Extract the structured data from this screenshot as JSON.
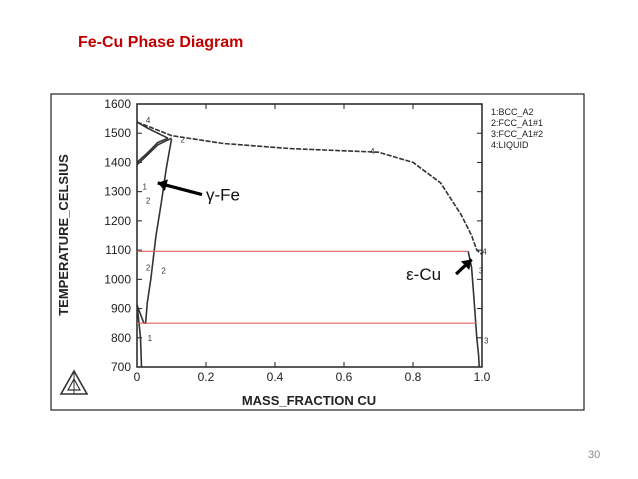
{
  "slide": {
    "title": "Fe-Cu Phase Diagram",
    "page_number": "30"
  },
  "colors": {
    "title": "#c00000",
    "curve": "#333333",
    "isotherm": "#e06060",
    "frame": "#222222"
  },
  "chart_data": {
    "type": "line",
    "title": "",
    "xlabel": "MASS_FRACTION CU",
    "ylabel": "TEMPERATURE_CELSIUS",
    "xlim": [
      0,
      1.0
    ],
    "ylim": [
      700,
      1600
    ],
    "x_ticks": [
      0,
      0.2,
      0.4,
      0.6,
      0.8,
      1.0
    ],
    "x_tick_labels": [
      "0",
      "0.2",
      "0.4",
      "0.6",
      "0.8",
      "1.0"
    ],
    "y_ticks": [
      700,
      800,
      900,
      1000,
      1100,
      1200,
      1300,
      1400,
      1500,
      1600
    ],
    "y_tick_labels": [
      "700",
      "800",
      "900",
      "1000",
      "1100",
      "1200",
      "1300",
      "1400",
      "1500",
      "1600"
    ],
    "grid": false,
    "legend_position": "right",
    "legend": [
      "1:BCC_A2",
      "2:FCC_A1#1",
      "3:FCC_A1#2",
      "4:LIQUID"
    ],
    "series": [
      {
        "values": [
          [
            0.0,
            1538
          ],
          [
            0.04,
            1520
          ],
          [
            0.1,
            1492
          ],
          [
            0.25,
            1465
          ],
          [
            0.45,
            1447
          ],
          [
            0.6,
            1440
          ],
          [
            0.7,
            1435
          ],
          [
            0.8,
            1400
          ],
          [
            0.88,
            1330
          ],
          [
            0.94,
            1220
          ],
          [
            0.97,
            1150
          ],
          [
            0.985,
            1100
          ],
          [
            1.0,
            1085
          ]
        ]
      },
      {
        "values": [
          [
            0.0,
            1538
          ],
          [
            0.03,
            1518
          ],
          [
            0.06,
            1500
          ],
          [
            0.09,
            1483
          ]
        ]
      },
      {
        "values": [
          [
            0.0,
            1400
          ],
          [
            0.03,
            1432
          ],
          [
            0.06,
            1468
          ],
          [
            0.09,
            1483
          ]
        ]
      },
      {
        "values": [
          [
            0.0,
            1392
          ],
          [
            0.03,
            1425
          ],
          [
            0.06,
            1460
          ],
          [
            0.1,
            1483
          ]
        ]
      },
      {
        "values": [
          [
            0.1,
            1480
          ],
          [
            0.085,
            1380
          ],
          [
            0.07,
            1260
          ],
          [
            0.055,
            1150
          ],
          [
            0.04,
            1000
          ],
          [
            0.03,
            920
          ],
          [
            0.025,
            850
          ],
          [
            0.02,
            850
          ]
        ]
      },
      {
        "values": [
          [
            0.0,
            912
          ],
          [
            0.01,
            880
          ],
          [
            0.02,
            850
          ]
        ]
      },
      {
        "values": [
          [
            0.0,
            912
          ],
          [
            0.005,
            860
          ],
          [
            0.01,
            800
          ],
          [
            0.012,
            740
          ],
          [
            0.013,
            700
          ]
        ]
      },
      {
        "values": [
          [
            0.96,
            1096
          ],
          [
            0.97,
            1040
          ],
          [
            0.975,
            960
          ],
          [
            0.98,
            880
          ],
          [
            0.985,
            800
          ],
          [
            0.99,
            740
          ],
          [
            0.992,
            700
          ]
        ]
      },
      {
        "values": [
          [
            0.0,
            1096
          ],
          [
            0.96,
            1096
          ]
        ]
      },
      {
        "values": [
          [
            0.0,
            850
          ],
          [
            0.985,
            850
          ]
        ]
      }
    ],
    "curve_labels": [
      {
        "text": "4",
        "x": 0.02,
        "y": 1545
      },
      {
        "text": "2",
        "x": 0.12,
        "y": 1478
      },
      {
        "text": "4",
        "x": 0.67,
        "y": 1440
      },
      {
        "text": "1",
        "x": 0.01,
        "y": 1318
      },
      {
        "text": "2",
        "x": 0.02,
        "y": 1270
      },
      {
        "text": "2",
        "x": 0.02,
        "y": 1040
      },
      {
        "text": "2",
        "x": 0.065,
        "y": 1030
      },
      {
        "text": "1",
        "x": 0.025,
        "y": 800
      },
      {
        "text": "4",
        "x": 0.995,
        "y": 1096
      },
      {
        "text": "3",
        "x": 0.985,
        "y": 1030
      },
      {
        "text": "3",
        "x": 1.0,
        "y": 790
      }
    ],
    "annotations": [
      {
        "text": "γ-Fe",
        "x": 0.2,
        "y": 1290,
        "arrow_to": [
          0.06,
          1330
        ]
      },
      {
        "text": "ε-Cu",
        "x": 0.78,
        "y": 1018,
        "arrow_to": [
          0.97,
          1068
        ]
      }
    ]
  }
}
